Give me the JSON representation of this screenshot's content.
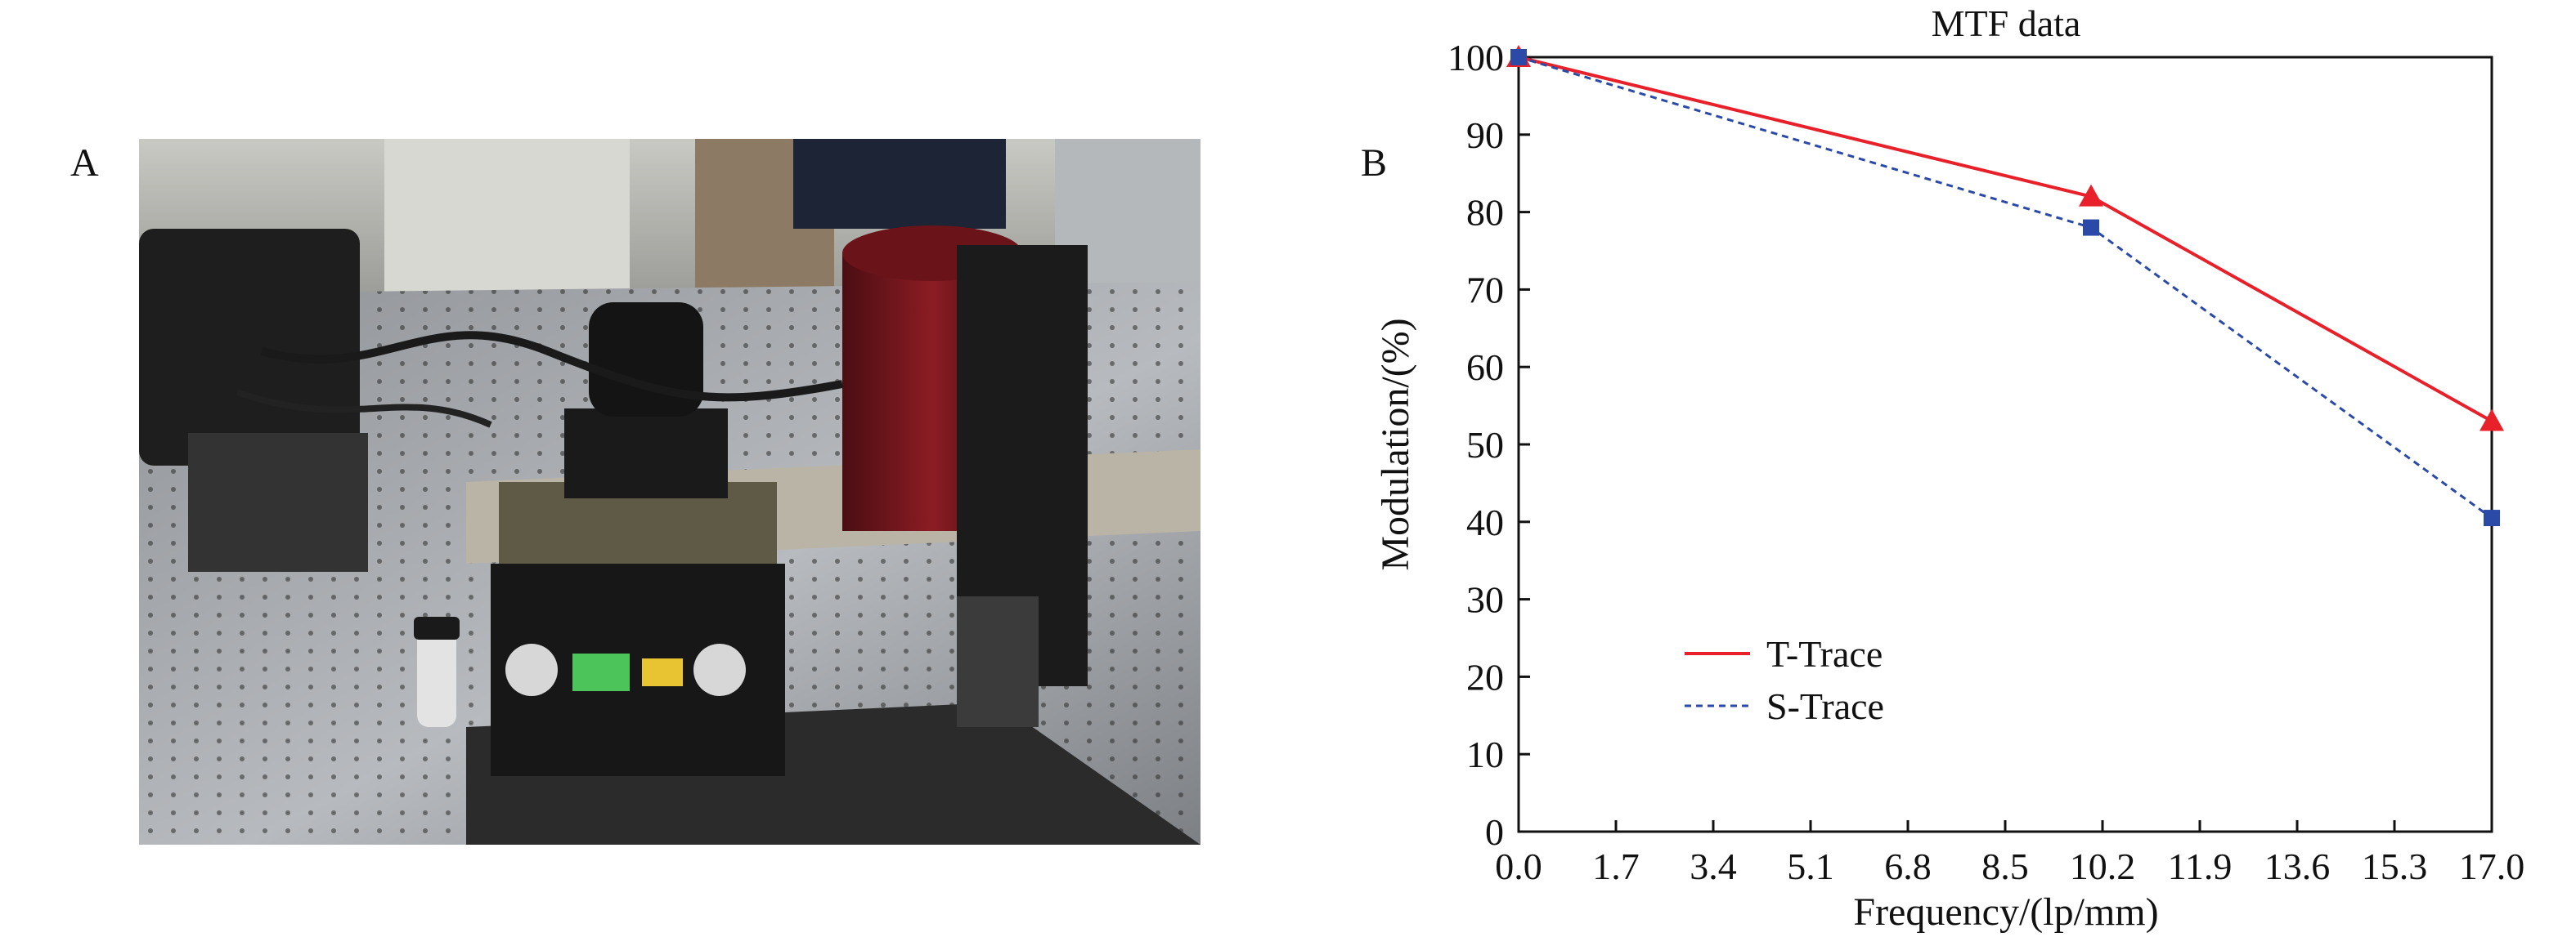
{
  "panels": {
    "a_label": "A",
    "b_label": "B"
  },
  "photo": {
    "depicts": "optical-bench-mtf-test-setup"
  },
  "chart_data": {
    "type": "line",
    "title": "MTF data",
    "xlabel": "Frequency/(lp/mm)",
    "ylabel": "Modulation/(%)",
    "xlim": [
      0,
      17.0
    ],
    "ylim": [
      0,
      100
    ],
    "xticks": [
      "0.0",
      "1.7",
      "3.4",
      "5.1",
      "6.8",
      "8.5",
      "10.2",
      "11.9",
      "13.6",
      "15.3",
      "17.0"
    ],
    "yticks": [
      "0",
      "10",
      "20",
      "30",
      "40",
      "50",
      "60",
      "70",
      "80",
      "90",
      "100"
    ],
    "grid": false,
    "legend_position": "lower-left",
    "series": [
      {
        "name": "T-Trace",
        "color": "#e8202a",
        "line_style": "solid",
        "marker": "triangle",
        "x": [
          0.0,
          10.0,
          17.0
        ],
        "y": [
          100,
          82,
          53
        ]
      },
      {
        "name": "S-Trace",
        "color": "#2b4aa8",
        "line_style": "dashed",
        "marker": "square",
        "x": [
          0.0,
          10.0,
          17.0
        ],
        "y": [
          100,
          78,
          40.5
        ]
      }
    ]
  }
}
